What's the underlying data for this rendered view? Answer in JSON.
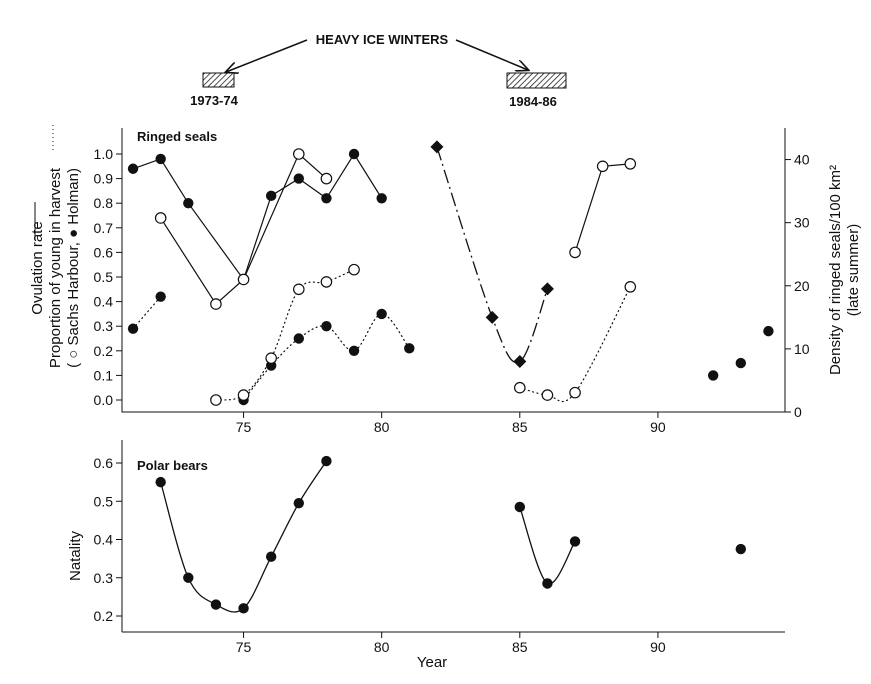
{
  "header": {
    "title": "HEAVY ICE WINTERS",
    "period_left": "1973-74",
    "period_right": "1984-86"
  },
  "chart_data": [
    {
      "type": "line",
      "panel": "Ringed seals",
      "title": "Ringed seals",
      "ylabel_lines": [
        "Ovulation rate",
        "Proportion of young in harvest",
        "( ○ Sachs Harbour, ● Holman)"
      ],
      "y2label_lines": [
        "Density of ringed seals/100 km²",
        "(late summer)"
      ],
      "xlim": [
        70.6,
        94.6
      ],
      "ylim": [
        -0.05,
        1.1
      ],
      "y2lim": [
        0,
        45
      ],
      "xticks": [
        75,
        80,
        85,
        90
      ],
      "yticks": [
        0.0,
        0.1,
        0.2,
        0.3,
        0.4,
        0.5,
        0.6,
        0.7,
        0.8,
        0.9,
        1.0
      ],
      "y2ticks": [
        0,
        10,
        20,
        30,
        40
      ],
      "series": [
        {
          "group": "ovulation-holman",
          "marker": "filled-circle",
          "line": "solid",
          "axis": "left",
          "x": [
            71,
            72,
            73,
            75,
            76,
            77,
            78,
            79,
            80
          ],
          "y": [
            0.94,
            0.98,
            0.8,
            0.49,
            0.83,
            0.9,
            0.82,
            1.0,
            0.82
          ]
        },
        {
          "group": "ovulation-sachs",
          "marker": "open-circle",
          "line": "solid",
          "axis": "left",
          "x": [
            72,
            74,
            75,
            77,
            78
          ],
          "y": [
            0.74,
            0.39,
            0.49,
            1.0,
            0.9
          ]
        },
        {
          "group": "ovulation-sachs-2",
          "marker": "open-circle",
          "line": "solid",
          "axis": "left",
          "x": [
            87,
            88,
            89
          ],
          "y": [
            0.6,
            0.95,
            0.96
          ]
        },
        {
          "group": "young-holman",
          "marker": "filled-circle",
          "line": "dotted",
          "axis": "left",
          "x": [
            71,
            72
          ],
          "y": [
            0.29,
            0.42
          ]
        },
        {
          "group": "young-holman-2",
          "marker": "filled-circle",
          "line": "dotted",
          "axis": "left",
          "x": [
            75,
            76,
            77,
            78,
            79,
            80,
            81
          ],
          "y": [
            0.0,
            0.14,
            0.25,
            0.3,
            0.2,
            0.35,
            0.21
          ]
        },
        {
          "group": "young-holman-3",
          "marker": "filled-circle",
          "line": "none",
          "axis": "left",
          "x": [
            92,
            93,
            94
          ],
          "y": [
            0.1,
            0.15,
            0.28
          ]
        },
        {
          "group": "young-sachs",
          "marker": "open-circle",
          "line": "dotted",
          "axis": "left",
          "x": [
            74,
            75,
            76,
            77,
            78,
            79
          ],
          "y": [
            0.0,
            0.02,
            0.17,
            0.45,
            0.48,
            0.53
          ]
        },
        {
          "group": "young-sachs-2",
          "marker": "open-circle",
          "line": "dotted",
          "axis": "left",
          "x": [
            85,
            86,
            87,
            89
          ],
          "y": [
            0.05,
            0.02,
            0.03,
            0.46
          ]
        },
        {
          "group": "density",
          "marker": "diamond",
          "line": "dashdot",
          "axis": "right",
          "x": [
            82,
            84,
            85,
            86
          ],
          "y": [
            42,
            15,
            8,
            19.5
          ]
        }
      ]
    },
    {
      "type": "line",
      "panel": "Polar bears",
      "title": "Polar bears",
      "xlabel": "Year",
      "ylabel": "Natality",
      "xlim": [
        70.6,
        94.6
      ],
      "ylim": [
        0.155,
        0.665
      ],
      "xticks": [
        75,
        80,
        85,
        90
      ],
      "yticks": [
        0.2,
        0.3,
        0.4,
        0.5,
        0.6
      ],
      "series": [
        {
          "group": "natality-1",
          "marker": "filled-circle",
          "line": "smooth",
          "x": [
            72,
            73,
            74,
            75,
            76,
            77,
            78
          ],
          "y": [
            0.55,
            0.3,
            0.23,
            0.22,
            0.355,
            0.495,
            0.605
          ]
        },
        {
          "group": "natality-2",
          "marker": "filled-circle",
          "line": "smooth",
          "x": [
            85,
            86,
            87
          ],
          "y": [
            0.485,
            0.285,
            0.395
          ]
        },
        {
          "group": "natality-3",
          "marker": "filled-circle",
          "line": "none",
          "x": [
            93
          ],
          "y": [
            0.375
          ]
        }
      ]
    }
  ]
}
